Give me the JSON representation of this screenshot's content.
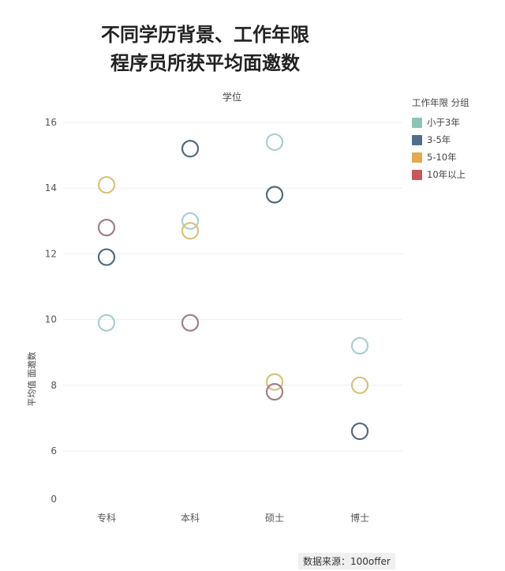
{
  "title_lines": [
    "不同学历背景、工作年限",
    "程序员所获平均面邀数"
  ],
  "source": "数据来源：100offer",
  "legend": {
    "title": "工作年限 分组",
    "items": [
      {
        "label": "小于3年",
        "color": "#8ec3b5"
      },
      {
        "label": "3-5年",
        "color": "#4e6e8e"
      },
      {
        "label": "5-10年",
        "color": "#e3aa50"
      },
      {
        "label": "10年以上",
        "color": "#c9575a"
      }
    ]
  },
  "chart_data": {
    "type": "scatter",
    "title": "不同学历背景、工作年限 程序员所获平均面邀数",
    "xlabel": "学位",
    "ylabel": "平均值 面邀数",
    "categories": [
      "专科",
      "本科",
      "硕士",
      "博士"
    ],
    "ylim": [
      0,
      16.5
    ],
    "yticks": [
      0,
      6,
      8,
      10,
      12,
      14,
      16
    ],
    "grid": true,
    "legend_position": "top-right",
    "series": [
      {
        "name": "小于3年",
        "color": "#a9cfd0",
        "values": [
          9.9,
          13.0,
          15.4,
          9.2
        ]
      },
      {
        "name": "3-5年",
        "color": "#556878",
        "values": [
          11.9,
          15.2,
          13.8,
          6.6
        ]
      },
      {
        "name": "5-10年",
        "color": "#d8c27a",
        "values": [
          14.1,
          12.7,
          8.1,
          8.0
        ]
      },
      {
        "name": "10年以上",
        "color": "#a08088",
        "values": [
          12.8,
          9.9,
          7.8,
          null
        ]
      }
    ]
  }
}
